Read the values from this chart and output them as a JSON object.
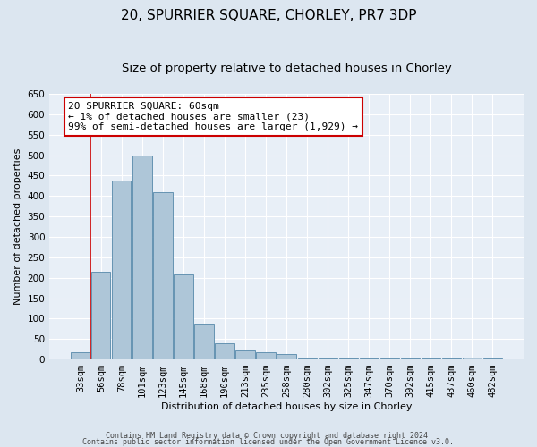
{
  "title": "20, SPURRIER SQUARE, CHORLEY, PR7 3DP",
  "subtitle": "Size of property relative to detached houses in Chorley",
  "xlabel": "Distribution of detached houses by size in Chorley",
  "ylabel": "Number of detached properties",
  "bar_labels": [
    "33sqm",
    "56sqm",
    "78sqm",
    "101sqm",
    "123sqm",
    "145sqm",
    "168sqm",
    "190sqm",
    "213sqm",
    "235sqm",
    "258sqm",
    "280sqm",
    "302sqm",
    "325sqm",
    "347sqm",
    "370sqm",
    "392sqm",
    "415sqm",
    "437sqm",
    "460sqm",
    "482sqm"
  ],
  "bar_values": [
    18,
    215,
    437,
    500,
    410,
    207,
    88,
    40,
    22,
    18,
    13,
    2,
    2,
    2,
    2,
    2,
    2,
    2,
    2,
    5,
    3
  ],
  "bar_color": "#aec6d8",
  "bar_edge_color": "#5588aa",
  "property_line_x": 1,
  "annotation_title": "20 SPURRIER SQUARE: 60sqm",
  "annotation_line1": "← 1% of detached houses are smaller (23)",
  "annotation_line2": "99% of semi-detached houses are larger (1,929) →",
  "annotation_box_color": "#ffffff",
  "annotation_box_edge": "#cc0000",
  "vline_color": "#cc0000",
  "ylim": [
    0,
    650
  ],
  "footer1": "Contains HM Land Registry data © Crown copyright and database right 2024.",
  "footer2": "Contains public sector information licensed under the Open Government Licence v3.0.",
  "bg_color": "#dce6f0",
  "plot_bg_color": "#e8eff7",
  "grid_color": "#ffffff",
  "title_fontsize": 11,
  "subtitle_fontsize": 9.5,
  "axis_label_fontsize": 8,
  "tick_fontsize": 7.5,
  "footer_fontsize": 6,
  "annotation_fontsize": 8
}
